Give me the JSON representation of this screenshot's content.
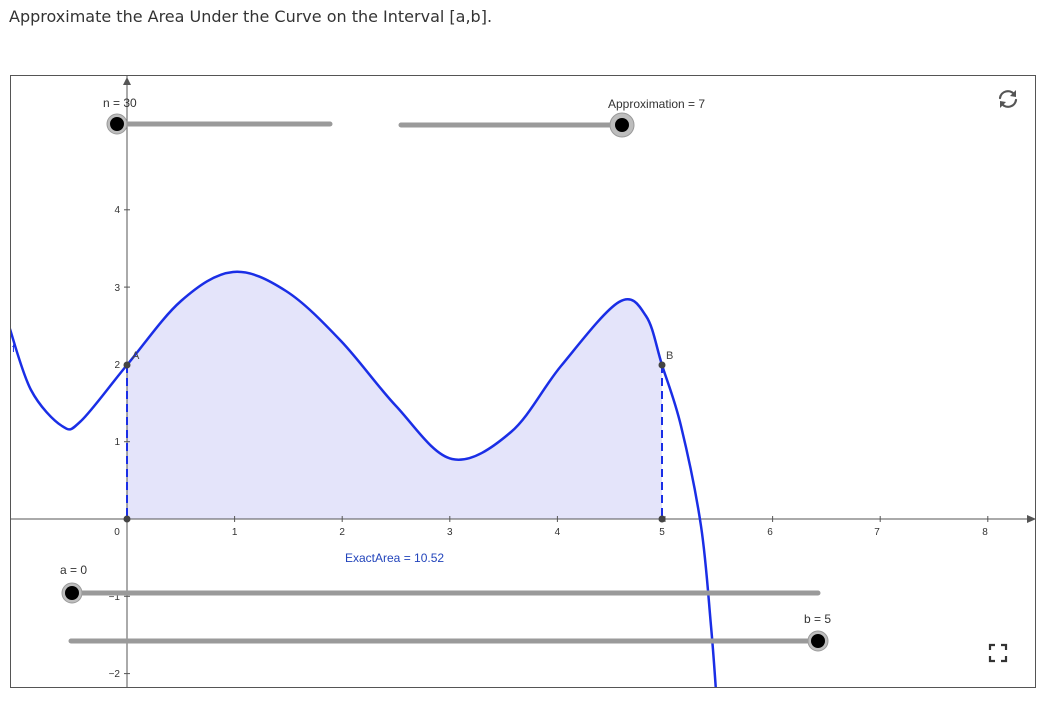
{
  "page": {
    "title": "Approximate the Area Under the Curve on the Interval [a,b]."
  },
  "applet": {
    "sliders": {
      "n": {
        "label": "n = 30",
        "value": 30
      },
      "approximation": {
        "label": "Approximation = 7",
        "value": 7
      },
      "a": {
        "label": "a = 0",
        "value": 0
      },
      "b": {
        "label": "b = 5",
        "value": 5
      }
    },
    "exact_area_label": "ExactArea = 10.52",
    "function_label": "f",
    "point_labels": {
      "A": "A",
      "B": "B"
    },
    "axes": {
      "x_ticks": [
        "0",
        "1",
        "2",
        "3",
        "4",
        "5",
        "6",
        "7",
        "8"
      ],
      "y_ticks": [
        "4",
        "3",
        "2",
        "1",
        "−1",
        "−2"
      ]
    },
    "icons": {
      "reset": "reset-icon",
      "fullscreen": "fullscreen-icon"
    },
    "colors": {
      "curve": "#1a2ee6",
      "fill": "#e4e4fa",
      "slider_track": "#9a9a9a",
      "slider_handle": "#000000",
      "label_blue": "#2244bb"
    }
  }
}
